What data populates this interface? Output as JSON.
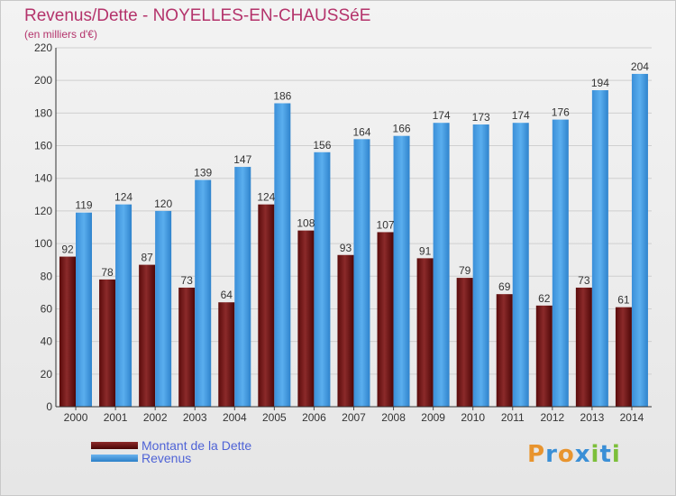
{
  "title": "Revenus/Dette - NOYELLES-EN-CHAUSSéE",
  "subtitle": "(en milliers d'€)",
  "logo": {
    "text": "Proxiti",
    "letter_colors": [
      "#e8942e",
      "#3a8fd6",
      "#e8942e",
      "#3a8fd6",
      "#7cbf3a",
      "#3a8fd6",
      "#7cbf3a"
    ]
  },
  "chart_data": {
    "type": "bar",
    "categories": [
      "2000",
      "2001",
      "2002",
      "2003",
      "2004",
      "2005",
      "2006",
      "2007",
      "2008",
      "2009",
      "2010",
      "2011",
      "2012",
      "2013",
      "2014"
    ],
    "series": [
      {
        "name": "Montant de la Dette",
        "color": "#7a1f1f",
        "values": [
          92,
          78,
          87,
          73,
          64,
          124,
          108,
          93,
          107,
          91,
          79,
          69,
          62,
          73,
          61
        ]
      },
      {
        "name": "Revenus",
        "color": "#4ea3e6",
        "values": [
          119,
          124,
          120,
          139,
          147,
          186,
          156,
          164,
          166,
          174,
          173,
          174,
          176,
          194,
          204
        ]
      }
    ],
    "ylim": [
      0,
      220
    ],
    "yticks": [
      0,
      20,
      40,
      60,
      80,
      100,
      120,
      140,
      160,
      180,
      200,
      220
    ],
    "grid": true,
    "legend": "bottom-left"
  }
}
